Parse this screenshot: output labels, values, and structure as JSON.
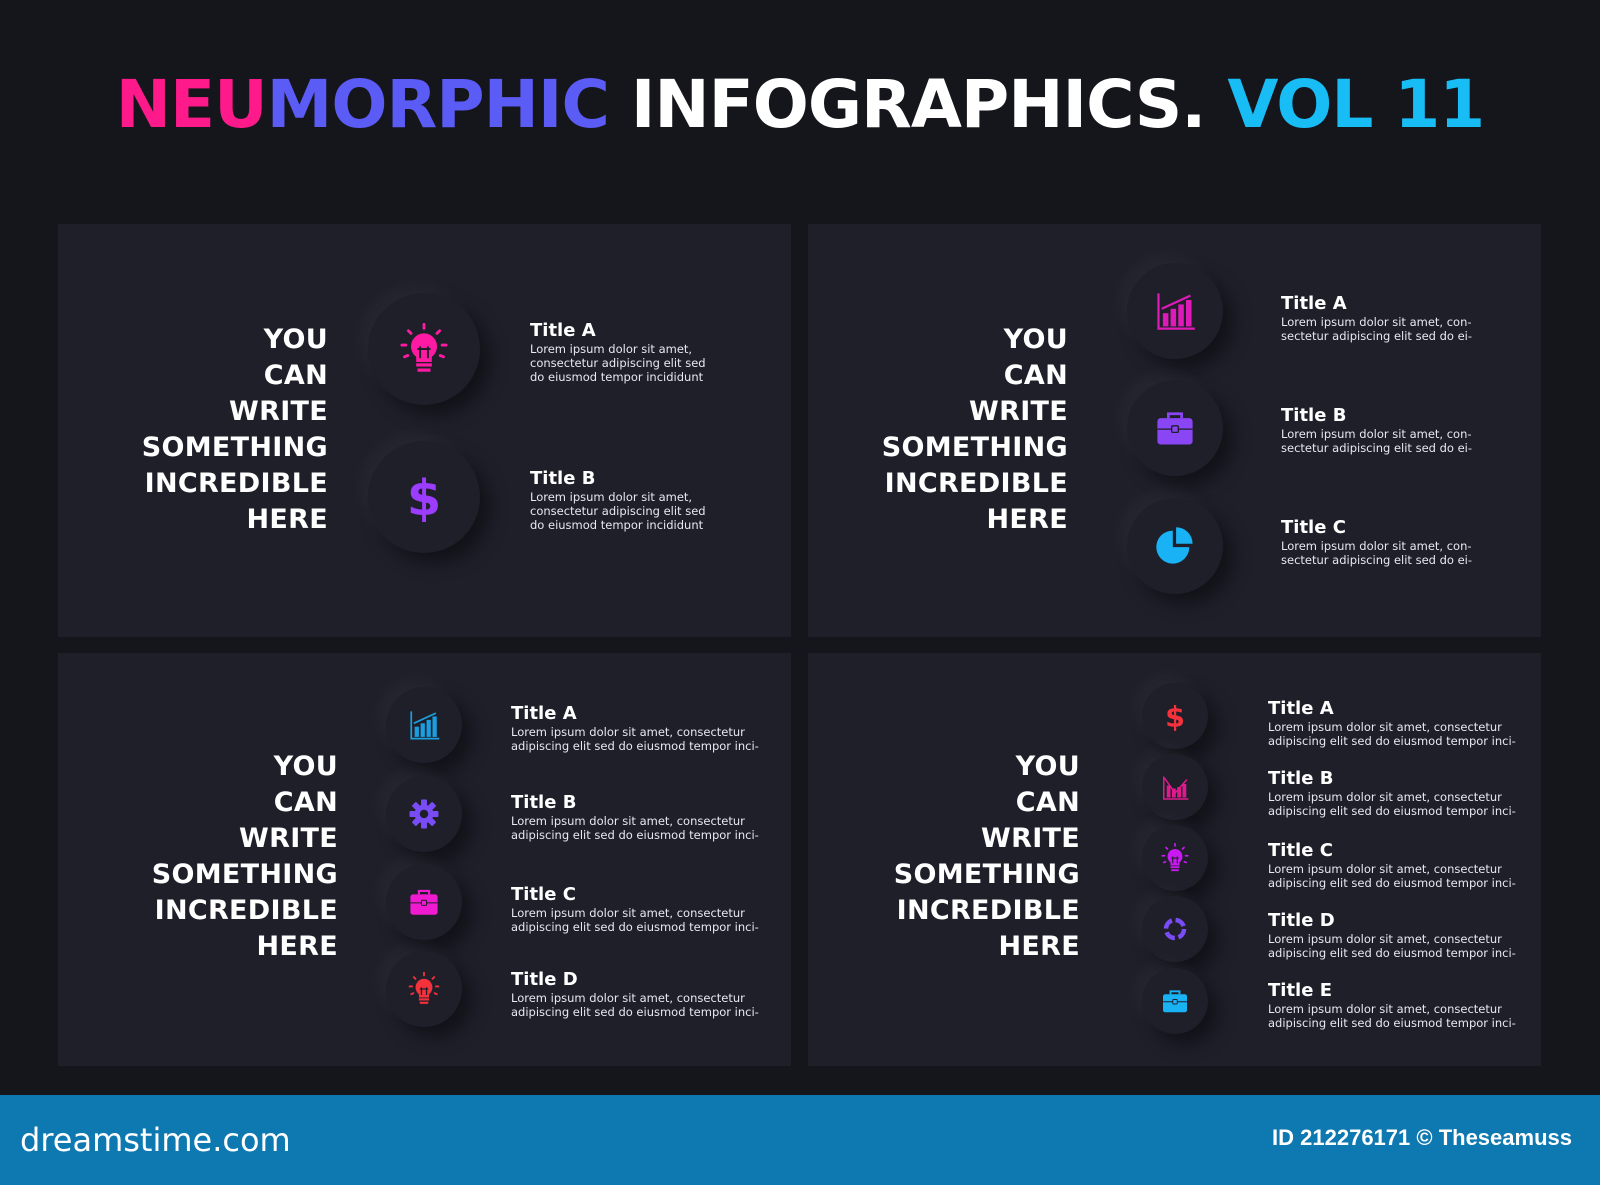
{
  "header": {
    "parts": [
      {
        "text": "NEU",
        "color": "#ff1a8c"
      },
      {
        "text": "MORPHIC ",
        "color": "#5b5bf5"
      },
      {
        "text": "INFOGRAPHICS. ",
        "color": "#ffffff"
      },
      {
        "text": "VOL 11",
        "color": "#19bdf5"
      }
    ]
  },
  "panels": [
    {
      "heading": [
        "YOU",
        "CAN",
        "WRITE",
        "SOMETHING",
        "INCREDIBLE",
        "HERE"
      ],
      "items": [
        {
          "icon": "lightbulb-icon",
          "color": "#ff1aa3",
          "title": "Title A",
          "body": [
            "Lorem ipsum dolor sit amet,",
            "consectetur adipiscing elit sed",
            "do eiusmod tempor incididunt"
          ]
        },
        {
          "icon": "dollar-icon",
          "color": "#9b3cff",
          "title": "Title B",
          "body": [
            "Lorem ipsum dolor sit amet,",
            "consectetur adipiscing elit sed",
            "do eiusmod tempor incididunt"
          ]
        }
      ]
    },
    {
      "heading": [
        "YOU",
        "CAN",
        "WRITE",
        "SOMETHING",
        "INCREDIBLE",
        "HERE"
      ],
      "items": [
        {
          "icon": "bar-chart-icon",
          "color": "#e01ab8",
          "title": "Title A",
          "body": [
            "Lorem ipsum dolor sit amet, con-",
            "sectetur adipiscing elit sed do ei-"
          ]
        },
        {
          "icon": "briefcase-icon",
          "color": "#8a45f5",
          "title": "Title B",
          "body": [
            "Lorem ipsum dolor sit amet, con-",
            "sectetur adipiscing elit sed do ei-"
          ]
        },
        {
          "icon": "pie-chart-icon",
          "color": "#19b2f5",
          "title": "Title C",
          "body": [
            "Lorem ipsum dolor sit amet, con-",
            "sectetur adipiscing elit sed do ei-"
          ]
        }
      ]
    },
    {
      "heading": [
        "YOU",
        "CAN",
        "WRITE",
        "SOMETHING",
        "INCREDIBLE",
        "HERE"
      ],
      "items": [
        {
          "icon": "bar-chart-icon",
          "color": "#1a9fe0",
          "title": "Title A",
          "body": [
            "Lorem ipsum dolor sit amet, consectetur",
            "adipiscing elit sed do eiusmod tempor inci-"
          ]
        },
        {
          "icon": "gear-icon",
          "color": "#7a4cf5",
          "title": "Title B",
          "body": [
            "Lorem ipsum dolor sit amet, consectetur",
            "adipiscing elit sed do eiusmod tempor inci-"
          ]
        },
        {
          "icon": "briefcase-icon",
          "color": "#f01ad0",
          "title": "Title C",
          "body": [
            "Lorem ipsum dolor sit amet, consectetur",
            "adipiscing elit sed do eiusmod tempor inci-"
          ]
        },
        {
          "icon": "lightbulb-icon",
          "color": "#f5323c",
          "title": "Title D",
          "body": [
            "Lorem ipsum dolor sit amet, consectetur",
            "adipiscing elit sed do eiusmod tempor inci-"
          ]
        }
      ]
    },
    {
      "heading": [
        "YOU",
        "CAN",
        "WRITE",
        "SOMETHING",
        "INCREDIBLE",
        "HERE"
      ],
      "items": [
        {
          "icon": "dollar-icon",
          "color": "#f5323c",
          "title": "Title A",
          "body": [
            "Lorem ipsum dolor sit amet, consectetur",
            "adipiscing elit sed do eiusmod tempor inci-"
          ]
        },
        {
          "icon": "declining-chart-icon",
          "color": "#e01a8c",
          "title": "Title B",
          "body": [
            "Lorem ipsum dolor sit amet, consectetur",
            "adipiscing elit sed do eiusmod tempor inci-"
          ]
        },
        {
          "icon": "lightbulb-icon",
          "color": "#c81af0",
          "title": "Title C",
          "body": [
            "Lorem ipsum dolor sit amet, consectetur",
            "adipiscing elit sed do eiusmod tempor inci-"
          ]
        },
        {
          "icon": "cycle-icon",
          "color": "#7a4cf5",
          "title": "Title D",
          "body": [
            "Lorem ipsum dolor sit amet, consectetur",
            "adipiscing elit sed do eiusmod tempor inci-"
          ]
        },
        {
          "icon": "briefcase-icon",
          "color": "#19b2f5",
          "title": "Title E",
          "body": [
            "Lorem ipsum dolor sit amet, consectetur",
            "adipiscing elit sed do eiusmod tempor inci-"
          ]
        }
      ]
    }
  ],
  "footer": {
    "brand": "dreamstime.com",
    "credit": "ID 212276171 © Theseamuss",
    "background": "#0e78b0"
  }
}
